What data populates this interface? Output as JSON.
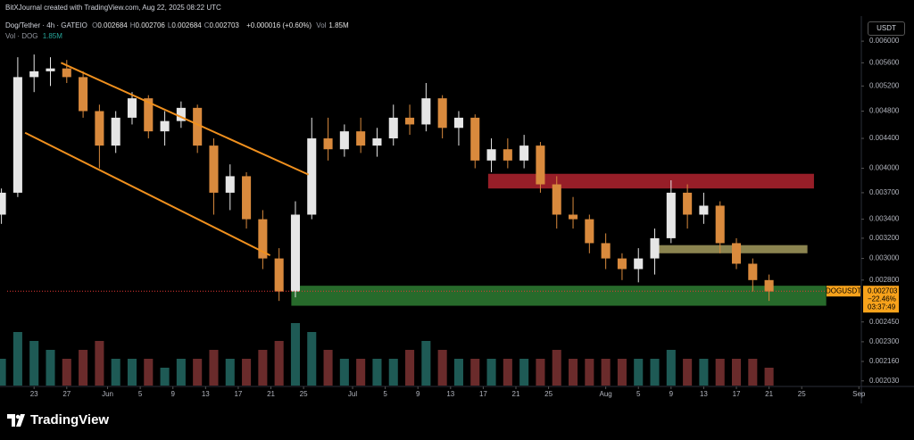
{
  "header": {
    "caption": "BitXJournal created with TradingView.com, Aug 22, 2025 08:22 UTC",
    "symbol": "Dog/Tether · 4h · GATEIO",
    "ohlc": [
      {
        "label": "O",
        "value": "0.002684"
      },
      {
        "label": "H",
        "value": "0.002706"
      },
      {
        "label": "L",
        "value": "0.002684"
      },
      {
        "label": "C",
        "value": "0.002703"
      }
    ],
    "change": "+0.000016 (+0.60%)",
    "vol_label": "Vol",
    "vol_value": "1.85M",
    "vol_row_label": "Vol · DOG",
    "vol_row_value": "1.85M",
    "currency": "USDT"
  },
  "footer": {
    "logo": "TradingView"
  },
  "chart_data": {
    "type": "candlestick",
    "log_scale": true,
    "xlim": [
      0.7,
      105.3
    ],
    "xticks": [
      {
        "value": 4,
        "label": "23"
      },
      {
        "value": 8,
        "label": "27"
      },
      {
        "value": 13,
        "label": "Jun"
      },
      {
        "value": 17,
        "label": "5"
      },
      {
        "value": 21,
        "label": "9"
      },
      {
        "value": 25,
        "label": "13"
      },
      {
        "value": 29,
        "label": "17"
      },
      {
        "value": 33,
        "label": "21"
      },
      {
        "value": 37,
        "label": "25"
      },
      {
        "value": 43,
        "label": "Jul"
      },
      {
        "value": 47,
        "label": "5"
      },
      {
        "value": 51,
        "label": "9"
      },
      {
        "value": 55,
        "label": "13"
      },
      {
        "value": 59,
        "label": "17"
      },
      {
        "value": 63,
        "label": "21"
      },
      {
        "value": 67,
        "label": "25"
      },
      {
        "value": 74,
        "label": "Aug"
      },
      {
        "value": 78,
        "label": "5"
      },
      {
        "value": 82,
        "label": "9"
      },
      {
        "value": 86,
        "label": "13"
      },
      {
        "value": 90,
        "label": "17"
      },
      {
        "value": 94,
        "label": "21"
      },
      {
        "value": 98,
        "label": "25"
      },
      {
        "value": 105,
        "label": "Sep"
      }
    ],
    "ylim": [
      0.002,
      0.0065
    ],
    "yticks": [
      {
        "value": 0.006,
        "label": "0.006000"
      },
      {
        "value": 0.0056,
        "label": "0.005600"
      },
      {
        "value": 0.0052,
        "label": "0.005200"
      },
      {
        "value": 0.0048,
        "label": "0.004800"
      },
      {
        "value": 0.0044,
        "label": "0.004400"
      },
      {
        "value": 0.004,
        "label": "0.004000"
      },
      {
        "value": 0.0037,
        "label": "0.003700"
      },
      {
        "value": 0.0034,
        "label": "0.003400"
      },
      {
        "value": 0.0032,
        "label": "0.003200"
      },
      {
        "value": 0.003,
        "label": "0.003000"
      },
      {
        "value": 0.0028,
        "label": "0.002800"
      },
      {
        "value": 0.00245,
        "label": "0.002450"
      },
      {
        "value": 0.0023,
        "label": "0.002300"
      },
      {
        "value": 0.00216,
        "label": "0.002160"
      },
      {
        "value": 0.00203,
        "label": "0.002030"
      }
    ],
    "up_color": "#e6e6e6",
    "down_color": "#d98a3d",
    "up_volume_color": "#1e5a55",
    "down_volume_color": "#6a2b2b",
    "x": [
      0,
      2,
      4,
      6,
      8,
      10,
      12,
      14,
      16,
      18,
      20,
      22,
      24,
      26,
      28,
      30,
      32,
      34,
      36,
      38,
      40,
      42,
      44,
      46,
      48,
      50,
      52,
      54,
      56,
      58,
      60,
      62,
      64,
      66,
      68,
      70,
      72,
      74,
      76,
      78,
      80,
      82,
      84,
      86,
      88,
      90,
      92,
      94
    ],
    "open": [
      0.00345,
      0.0037,
      0.00535,
      0.00545,
      0.0055,
      0.00535,
      0.0048,
      0.0043,
      0.0047,
      0.005,
      0.0045,
      0.00465,
      0.00485,
      0.0043,
      0.0037,
      0.0039,
      0.0034,
      0.003,
      0.0027,
      0.00345,
      0.0044,
      0.00425,
      0.0045,
      0.0043,
      0.0044,
      0.0047,
      0.0046,
      0.005,
      0.00455,
      0.0047,
      0.0041,
      0.00425,
      0.0041,
      0.0043,
      0.0038,
      0.00345,
      0.0034,
      0.00315,
      0.003,
      0.0029,
      0.003,
      0.0032,
      0.0037,
      0.00345,
      0.00355,
      0.00315,
      0.00295,
      0.0028
    ],
    "high": [
      0.00375,
      0.0057,
      0.00575,
      0.0057,
      0.00565,
      0.00545,
      0.0049,
      0.0048,
      0.0051,
      0.00505,
      0.0048,
      0.00495,
      0.0049,
      0.0044,
      0.00405,
      0.00395,
      0.0035,
      0.0031,
      0.0036,
      0.0047,
      0.0047,
      0.0046,
      0.0047,
      0.00455,
      0.0049,
      0.0049,
      0.00525,
      0.00505,
      0.0048,
      0.00475,
      0.0044,
      0.0044,
      0.00445,
      0.00435,
      0.0039,
      0.00365,
      0.00345,
      0.00325,
      0.00305,
      0.0031,
      0.0033,
      0.00385,
      0.0038,
      0.0037,
      0.0036,
      0.0032,
      0.003,
      0.00285
    ],
    "low": [
      0.00335,
      0.00365,
      0.0051,
      0.0052,
      0.00525,
      0.0047,
      0.004,
      0.0042,
      0.0046,
      0.0044,
      0.0043,
      0.00455,
      0.0042,
      0.00345,
      0.0035,
      0.0033,
      0.0029,
      0.00262,
      0.00265,
      0.0034,
      0.0041,
      0.00415,
      0.0042,
      0.00415,
      0.0043,
      0.00445,
      0.0045,
      0.0044,
      0.0043,
      0.004,
      0.00395,
      0.004,
      0.004,
      0.0037,
      0.0033,
      0.0033,
      0.00305,
      0.0029,
      0.0028,
      0.00278,
      0.00285,
      0.00315,
      0.0033,
      0.00335,
      0.00305,
      0.0029,
      0.0027,
      0.00262
    ],
    "close": [
      0.0037,
      0.00535,
      0.00545,
      0.0055,
      0.00535,
      0.0048,
      0.0043,
      0.0047,
      0.005,
      0.0045,
      0.00465,
      0.00485,
      0.0043,
      0.0037,
      0.0039,
      0.0034,
      0.003,
      0.0027,
      0.00345,
      0.0044,
      0.00425,
      0.0045,
      0.0043,
      0.0044,
      0.0047,
      0.0046,
      0.005,
      0.00455,
      0.0047,
      0.0041,
      0.00425,
      0.0041,
      0.0043,
      0.0038,
      0.00345,
      0.0034,
      0.00315,
      0.003,
      0.0029,
      0.003,
      0.0032,
      0.0037,
      0.00345,
      0.00355,
      0.00315,
      0.00295,
      0.0028,
      0.0027
    ],
    "volume": [
      3,
      6,
      5,
      4,
      3,
      4,
      5,
      3,
      3,
      3,
      2,
      3,
      3,
      4,
      3,
      3,
      4,
      5,
      7,
      6,
      4,
      3,
      3,
      3,
      3,
      4,
      5,
      4,
      3,
      3,
      3,
      3,
      3,
      3,
      4,
      3,
      3,
      3,
      3,
      3,
      3,
      4,
      3,
      3,
      3,
      3,
      3,
      2
    ],
    "zones": [
      {
        "x0": 59.6,
        "x1": 99.5,
        "top": 0.00393,
        "bottom": 0.00375,
        "color": "#b2232f"
      },
      {
        "x0": 80.4,
        "x1": 98.7,
        "top": 0.00313,
        "bottom": 0.00305,
        "color": "#a39b5e"
      },
      {
        "x0": 35.5,
        "x1": 101,
        "top": 0.00275,
        "bottom": 0.00258,
        "color": "#2e7d32"
      }
    ],
    "lines": [
      {
        "d0": 7.3,
        "p0": 0.0056,
        "d1": 37.6,
        "p1": 0.00392,
        "color": "#f0901e"
      },
      {
        "d0": 2.9,
        "p0": 0.00448,
        "d1": 32.9,
        "p1": 0.00303,
        "color": "#f0901e"
      }
    ],
    "last_price": 0.002703,
    "last_symbol": "DOGUSDT",
    "last_change": "−22.46%",
    "last_countdown": "03:37:49",
    "last_color": "#f7a21b"
  }
}
